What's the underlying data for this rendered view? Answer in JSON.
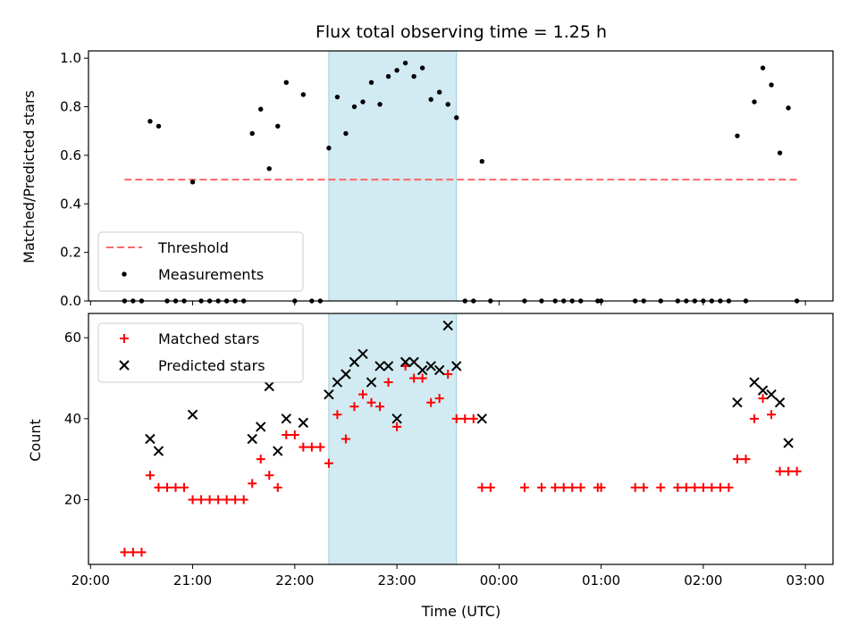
{
  "chart_data": [
    {
      "type": "scatter",
      "title": "Flux total observing time = 1.25 h",
      "xlabel": "",
      "ylabel": "Matched/Predicted stars",
      "x_unit": "hours since 20:00 UTC",
      "xlim": [
        19.98,
        27.27
      ],
      "ylim": [
        0,
        1.03
      ],
      "yticks": [
        "0.0",
        "0.2",
        "0.4",
        "0.6",
        "0.8",
        "1.0"
      ],
      "shaded_span": {
        "start": "22:20",
        "end": "23:35",
        "color": "#add8e6"
      },
      "threshold": {
        "name": "Threshold",
        "value": 0.5,
        "x_start": "20:20",
        "x_end": "02:55",
        "color": "#ff6666",
        "style": "dashed"
      },
      "legend": {
        "placement": "lower-left",
        "entries": [
          "Threshold",
          "Measurements"
        ]
      },
      "series": [
        {
          "name": "Measurements",
          "marker": "dot",
          "color": "#000000",
          "points": [
            [
              "20:20",
              0
            ],
            [
              "20:25",
              0
            ],
            [
              "20:30",
              0
            ],
            [
              "20:35",
              0.74
            ],
            [
              "20:40",
              0.72
            ],
            [
              "20:45",
              0
            ],
            [
              "20:50",
              0
            ],
            [
              "20:55",
              0
            ],
            [
              "21:00",
              0.49
            ],
            [
              "21:05",
              0
            ],
            [
              "21:10",
              0
            ],
            [
              "21:15",
              0
            ],
            [
              "21:20",
              0
            ],
            [
              "21:25",
              0
            ],
            [
              "21:30",
              0
            ],
            [
              "21:35",
              0.69
            ],
            [
              "21:40",
              0.79
            ],
            [
              "21:45",
              0.545
            ],
            [
              "21:50",
              0.72
            ],
            [
              "21:55",
              0.9
            ],
            [
              "22:00",
              0
            ],
            [
              "22:05",
              0.85
            ],
            [
              "22:10",
              0
            ],
            [
              "22:15",
              0
            ],
            [
              "22:20",
              0.63
            ],
            [
              "22:25",
              0.84
            ],
            [
              "22:30",
              0.69
            ],
            [
              "22:35",
              0.8
            ],
            [
              "22:40",
              0.82
            ],
            [
              "22:45",
              0.9
            ],
            [
              "22:50",
              0.81
            ],
            [
              "22:55",
              0.925
            ],
            [
              "23:00",
              0.95
            ],
            [
              "23:05",
              0.98
            ],
            [
              "23:10",
              0.925
            ],
            [
              "23:15",
              0.96
            ],
            [
              "23:20",
              0.83
            ],
            [
              "23:25",
              0.86
            ],
            [
              "23:30",
              0.81
            ],
            [
              "23:35",
              0.755
            ],
            [
              "23:40",
              0
            ],
            [
              "23:45",
              0
            ],
            [
              "23:50",
              0.575
            ],
            [
              "23:55",
              0
            ],
            [
              "00:15",
              0
            ],
            [
              "00:25",
              0
            ],
            [
              "00:33",
              0
            ],
            [
              "00:38",
              0
            ],
            [
              "00:43",
              0
            ],
            [
              "00:48",
              0
            ],
            [
              "00:58",
              0
            ],
            [
              "01:00",
              0
            ],
            [
              "01:20",
              0
            ],
            [
              "01:25",
              0
            ],
            [
              "01:35",
              0
            ],
            [
              "01:45",
              0
            ],
            [
              "01:50",
              0
            ],
            [
              "01:55",
              0
            ],
            [
              "02:00",
              0
            ],
            [
              "02:05",
              0
            ],
            [
              "02:10",
              0
            ],
            [
              "02:15",
              0
            ],
            [
              "02:25",
              0
            ],
            [
              "02:20",
              0.68
            ],
            [
              "02:30",
              0.82
            ],
            [
              "02:35",
              0.96
            ],
            [
              "02:40",
              0.89
            ],
            [
              "02:45",
              0.61
            ],
            [
              "02:50",
              0.795
            ],
            [
              "02:55",
              0
            ]
          ]
        }
      ]
    },
    {
      "type": "scatter",
      "title": "",
      "xlabel": "Time (UTC)",
      "ylabel": "Count",
      "x_unit": "hours since 20:00 UTC",
      "xlim": [
        19.98,
        27.27
      ],
      "ylim": [
        4,
        66
      ],
      "yticks": [
        "20",
        "40",
        "60"
      ],
      "xticks": [
        "20:00",
        "21:00",
        "22:00",
        "23:00",
        "00:00",
        "01:00",
        "02:00",
        "03:00"
      ],
      "shaded_span": {
        "start": "22:20",
        "end": "23:35",
        "color": "#add8e6"
      },
      "legend": {
        "placement": "top-left",
        "entries": [
          "Matched stars",
          "Predicted stars"
        ]
      },
      "series": [
        {
          "name": "Matched stars",
          "marker": "plus",
          "color": "#ff0000",
          "points": [
            [
              "20:20",
              7
            ],
            [
              "20:25",
              7
            ],
            [
              "20:30",
              7
            ],
            [
              "20:35",
              26
            ],
            [
              "20:40",
              23
            ],
            [
              "20:45",
              23
            ],
            [
              "20:50",
              23
            ],
            [
              "20:55",
              23
            ],
            [
              "21:00",
              20
            ],
            [
              "21:05",
              20
            ],
            [
              "21:10",
              20
            ],
            [
              "21:15",
              20
            ],
            [
              "21:20",
              20
            ],
            [
              "21:25",
              20
            ],
            [
              "21:30",
              20
            ],
            [
              "21:35",
              24
            ],
            [
              "21:40",
              30
            ],
            [
              "21:45",
              26
            ],
            [
              "21:50",
              23
            ],
            [
              "21:55",
              36
            ],
            [
              "22:00",
              36
            ],
            [
              "22:05",
              33
            ],
            [
              "22:10",
              33
            ],
            [
              "22:15",
              33
            ],
            [
              "22:20",
              29
            ],
            [
              "22:25",
              41
            ],
            [
              "22:30",
              35
            ],
            [
              "22:35",
              43
            ],
            [
              "22:40",
              46
            ],
            [
              "22:45",
              44
            ],
            [
              "22:50",
              43
            ],
            [
              "22:55",
              49
            ],
            [
              "23:00",
              38
            ],
            [
              "23:05",
              53
            ],
            [
              "23:10",
              50
            ],
            [
              "23:15",
              50
            ],
            [
              "23:20",
              44
            ],
            [
              "23:25",
              45
            ],
            [
              "23:30",
              51
            ],
            [
              "23:35",
              40
            ],
            [
              "23:40",
              40
            ],
            [
              "23:45",
              40
            ],
            [
              "23:50",
              23
            ],
            [
              "23:55",
              23
            ],
            [
              "00:15",
              23
            ],
            [
              "00:25",
              23
            ],
            [
              "00:33",
              23
            ],
            [
              "00:38",
              23
            ],
            [
              "00:43",
              23
            ],
            [
              "00:48",
              23
            ],
            [
              "00:58",
              23
            ],
            [
              "01:00",
              23
            ],
            [
              "01:20",
              23
            ],
            [
              "01:25",
              23
            ],
            [
              "01:35",
              23
            ],
            [
              "01:45",
              23
            ],
            [
              "01:50",
              23
            ],
            [
              "01:55",
              23
            ],
            [
              "02:00",
              23
            ],
            [
              "02:05",
              23
            ],
            [
              "02:10",
              23
            ],
            [
              "02:15",
              23
            ],
            [
              "02:20",
              30
            ],
            [
              "02:25",
              30
            ],
            [
              "02:30",
              40
            ],
            [
              "02:35",
              45
            ],
            [
              "02:40",
              41
            ],
            [
              "02:45",
              27
            ],
            [
              "02:50",
              27
            ],
            [
              "02:55",
              27
            ]
          ]
        },
        {
          "name": "Predicted stars",
          "marker": "x",
          "color": "#000000",
          "points": [
            [
              "20:35",
              35
            ],
            [
              "20:40",
              32
            ],
            [
              "21:00",
              41
            ],
            [
              "21:35",
              35
            ],
            [
              "21:40",
              38
            ],
            [
              "21:45",
              48
            ],
            [
              "21:50",
              32
            ],
            [
              "21:55",
              40
            ],
            [
              "22:05",
              39
            ],
            [
              "22:20",
              46
            ],
            [
              "22:25",
              49
            ],
            [
              "22:30",
              51
            ],
            [
              "22:35",
              54
            ],
            [
              "22:40",
              56
            ],
            [
              "22:45",
              49
            ],
            [
              "22:50",
              53
            ],
            [
              "22:55",
              53
            ],
            [
              "23:00",
              40
            ],
            [
              "23:05",
              54
            ],
            [
              "23:10",
              54
            ],
            [
              "23:15",
              52
            ],
            [
              "23:20",
              53
            ],
            [
              "23:25",
              52
            ],
            [
              "23:30",
              63
            ],
            [
              "23:35",
              53
            ],
            [
              "23:50",
              40
            ],
            [
              "02:20",
              44
            ],
            [
              "02:30",
              49
            ],
            [
              "02:35",
              47
            ],
            [
              "02:40",
              46
            ],
            [
              "02:45",
              44
            ],
            [
              "02:50",
              34
            ]
          ]
        }
      ]
    }
  ]
}
